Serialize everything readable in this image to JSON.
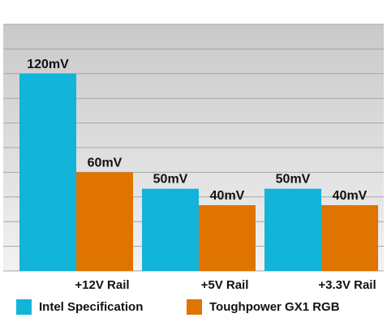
{
  "chart_data": {
    "type": "bar",
    "categories": [
      "+12V Rail",
      "+5V Rail",
      "+3.3V Rail"
    ],
    "series": [
      {
        "name": "Intel Specification",
        "values": [
          120,
          50,
          50
        ],
        "labels": [
          "120mV",
          "50mV",
          "50mV"
        ],
        "color": "#12b4d9"
      },
      {
        "name": "Toughpower GX1 RGB",
        "values": [
          60,
          40,
          40
        ],
        "labels": [
          "60mV",
          "40mV",
          "40mV"
        ],
        "color": "#e07400"
      }
    ],
    "ylim": [
      0,
      150
    ],
    "grid": true,
    "legend_position": "bottom-left",
    "title": "",
    "xlabel": "",
    "ylabel": ""
  }
}
